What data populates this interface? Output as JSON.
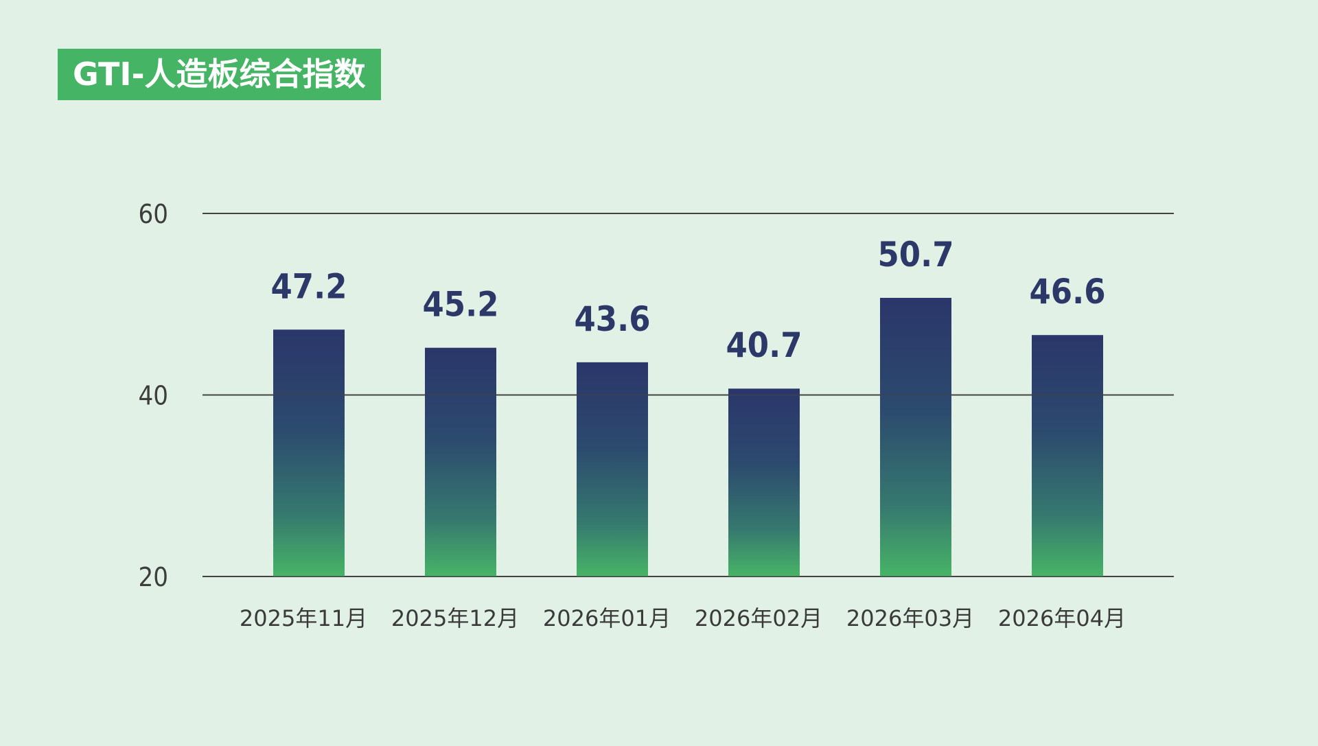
{
  "title": "GTI-人造板综合指数",
  "colors": {
    "background": "#e2f1e6",
    "title_bg": "#45b465",
    "bar_top": "#2b366a",
    "bar_bottom": "#47b466",
    "value_label": "#2c3868",
    "grid": "#444444"
  },
  "chart_data": {
    "type": "bar",
    "title": "GTI-人造板综合指数",
    "xlabel": "",
    "ylabel": "",
    "categories": [
      "2025年11月",
      "2025年12月",
      "2026年01月",
      "2026年02月",
      "2026年03月",
      "2026年04月"
    ],
    "values": [
      47.2,
      45.2,
      43.6,
      40.7,
      50.7,
      46.6
    ],
    "value_labels": [
      "47.2",
      "45.2",
      "43.6",
      "40.7",
      "50.7",
      "46.6"
    ],
    "ylim": [
      20,
      60
    ],
    "yticks": [
      20,
      40,
      60
    ],
    "ytick_labels": [
      "20",
      "40",
      "60"
    ],
    "grid": true,
    "legend": "none"
  }
}
